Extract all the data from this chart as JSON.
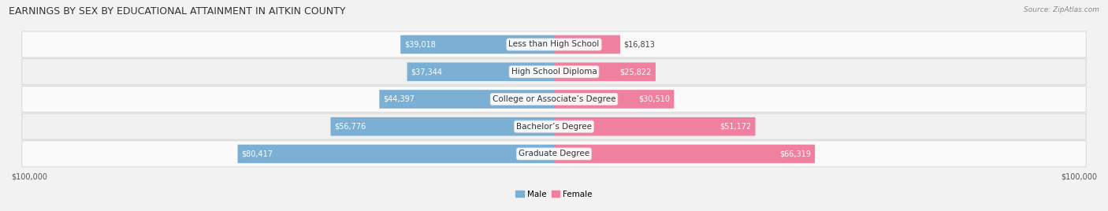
{
  "title": "EARNINGS BY SEX BY EDUCATIONAL ATTAINMENT IN AITKIN COUNTY",
  "source": "Source: ZipAtlas.com",
  "categories": [
    "Less than High School",
    "High School Diploma",
    "College or Associate’s Degree",
    "Bachelor’s Degree",
    "Graduate Degree"
  ],
  "male_values": [
    39018,
    37344,
    44397,
    56776,
    80417
  ],
  "female_values": [
    16813,
    25822,
    30510,
    51172,
    66319
  ],
  "male_color": "#7bafd4",
  "female_color": "#f080a0",
  "male_label": "Male",
  "female_label": "Female",
  "max_value": 100000,
  "background_color": "#f2f2f2",
  "row_colors": [
    "#fafafa",
    "#f0f0f0",
    "#fafafa",
    "#f0f0f0",
    "#fafafa"
  ],
  "xlabel_left": "$100,000",
  "xlabel_right": "$100,000",
  "title_fontsize": 9,
  "source_fontsize": 6.5,
  "label_fontsize": 7,
  "value_fontsize": 7,
  "category_fontsize": 7.5
}
